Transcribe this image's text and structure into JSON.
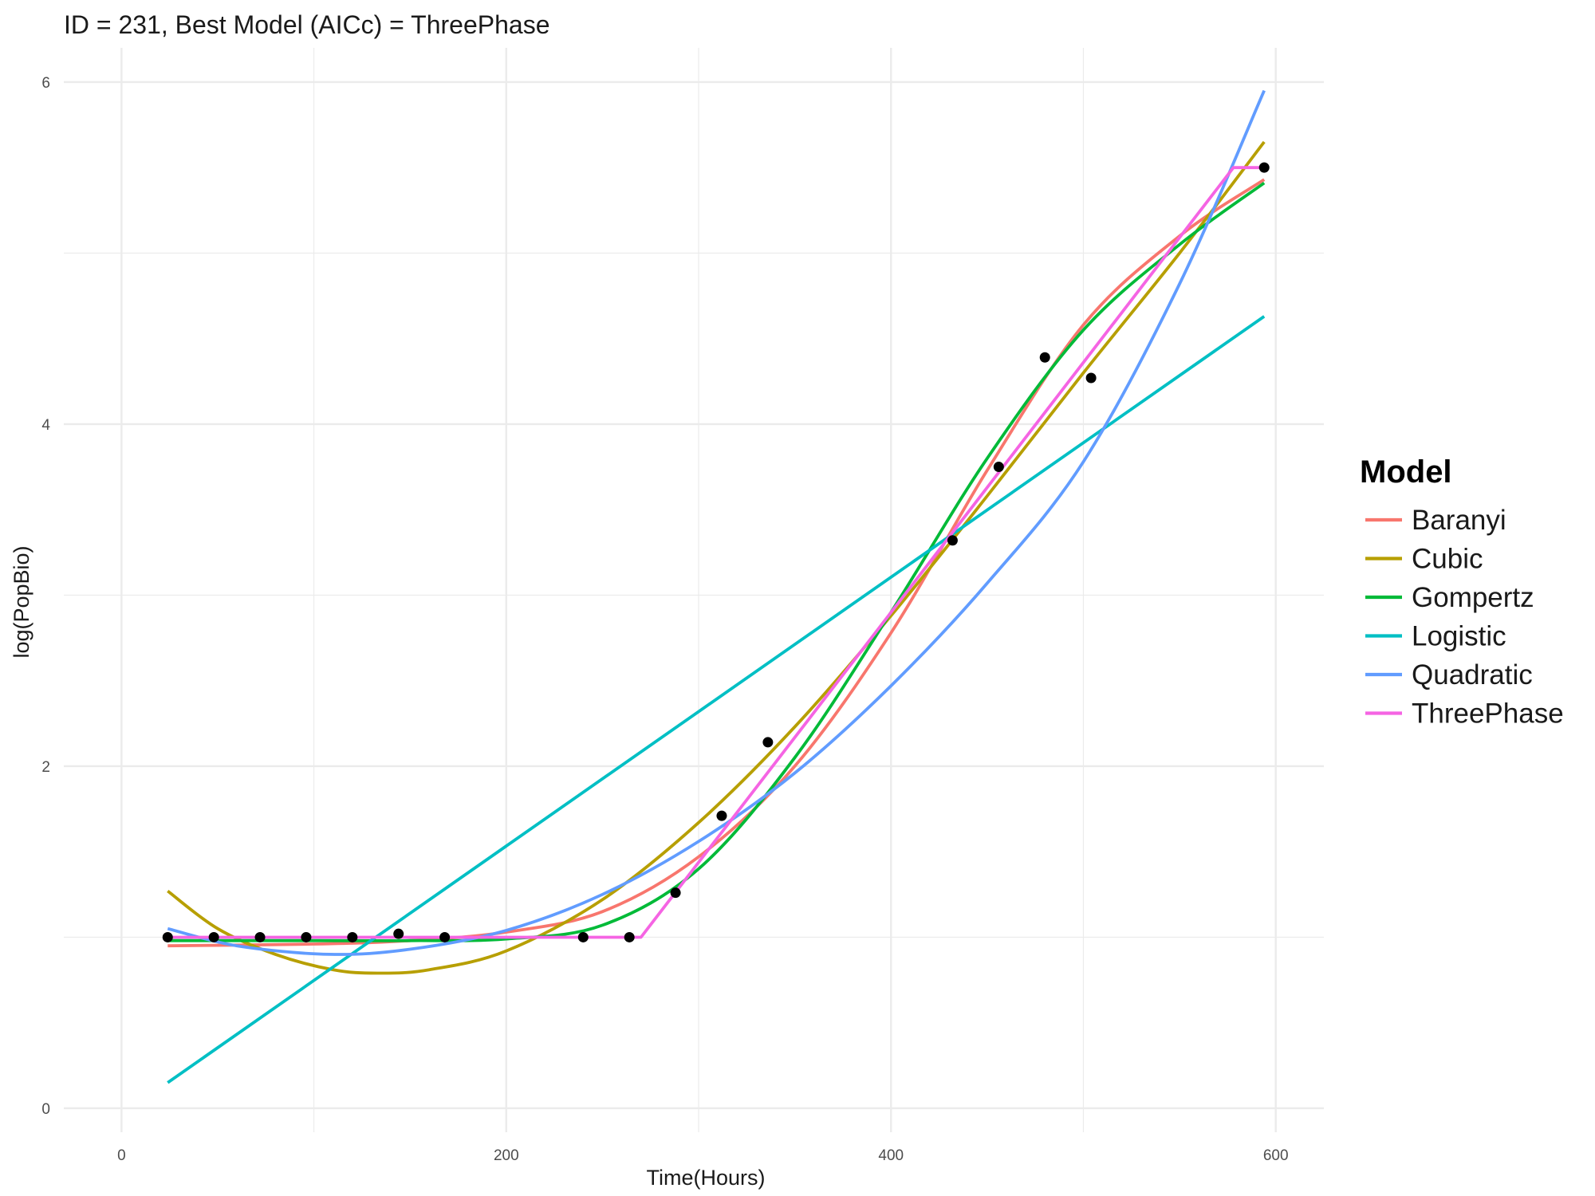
{
  "chart_data": {
    "type": "line",
    "title": "ID = 231, Best Model (AICc) = ThreePhase",
    "xlabel": "Time(Hours)",
    "ylabel": "log(PopBio)",
    "xlim": [
      -30,
      625
    ],
    "ylim": [
      -0.14,
      6.2
    ],
    "x_ticks": [
      0,
      200,
      400,
      600
    ],
    "x_tick_labels": [
      "0",
      "200",
      "400",
      "600"
    ],
    "y_ticks": [
      0,
      2,
      4,
      6
    ],
    "y_tick_labels": [
      "0",
      "2",
      "4",
      "6"
    ],
    "grid": true,
    "legend": {
      "title": "Model",
      "position": "right"
    },
    "points": {
      "x": [
        24,
        48,
        72,
        96,
        120,
        144,
        168,
        240,
        264,
        288,
        312,
        336,
        432,
        456,
        480,
        504,
        594
      ],
      "y": [
        1.0,
        1.0,
        1.0,
        1.0,
        1.0,
        1.02,
        1.0,
        1.0,
        1.0,
        1.26,
        1.71,
        2.14,
        3.32,
        3.75,
        4.39,
        4.27,
        5.5
      ]
    },
    "series": [
      {
        "name": "Baranyi",
        "color": "#F8766D",
        "x": [
          24,
          100,
          150,
          200,
          250,
          300,
          350,
          400,
          450,
          500,
          550,
          594
        ],
        "y": [
          0.95,
          0.96,
          0.98,
          1.03,
          1.15,
          1.47,
          2.0,
          2.78,
          3.73,
          4.58,
          5.1,
          5.43
        ]
      },
      {
        "name": "Cubic",
        "color": "#B79F00",
        "x": [
          24,
          50,
          80,
          110,
          133,
          160,
          200,
          250,
          300,
          350,
          400,
          450,
          500,
          550,
          594
        ],
        "y": [
          1.27,
          1.05,
          0.9,
          0.81,
          0.79,
          0.81,
          0.92,
          1.22,
          1.67,
          2.23,
          2.88,
          3.58,
          4.3,
          5.0,
          5.65
        ]
      },
      {
        "name": "Gompertz",
        "color": "#00BA38",
        "x": [
          24,
          100,
          150,
          200,
          250,
          300,
          350,
          400,
          450,
          500,
          550,
          594
        ],
        "y": [
          0.98,
          0.98,
          0.98,
          0.99,
          1.07,
          1.4,
          2.05,
          2.9,
          3.8,
          4.55,
          5.05,
          5.41
        ]
      },
      {
        "name": "Logistic",
        "color": "#00BFC4",
        "x": [
          24,
          594
        ],
        "y": [
          0.15,
          4.63
        ]
      },
      {
        "name": "Quadratic",
        "color": "#619CFF",
        "x": [
          24,
          60,
          108,
          150,
          200,
          250,
          300,
          350,
          400,
          450,
          500,
          550,
          594
        ],
        "y": [
          1.05,
          0.95,
          0.9,
          0.93,
          1.04,
          1.25,
          1.56,
          1.96,
          2.47,
          3.07,
          3.78,
          4.82,
          5.95
        ]
      },
      {
        "name": "ThreePhase",
        "color": "#F564E3",
        "x": [
          24,
          270,
          578,
          594
        ],
        "y": [
          1.0,
          1.0,
          5.5,
          5.5
        ]
      }
    ]
  }
}
